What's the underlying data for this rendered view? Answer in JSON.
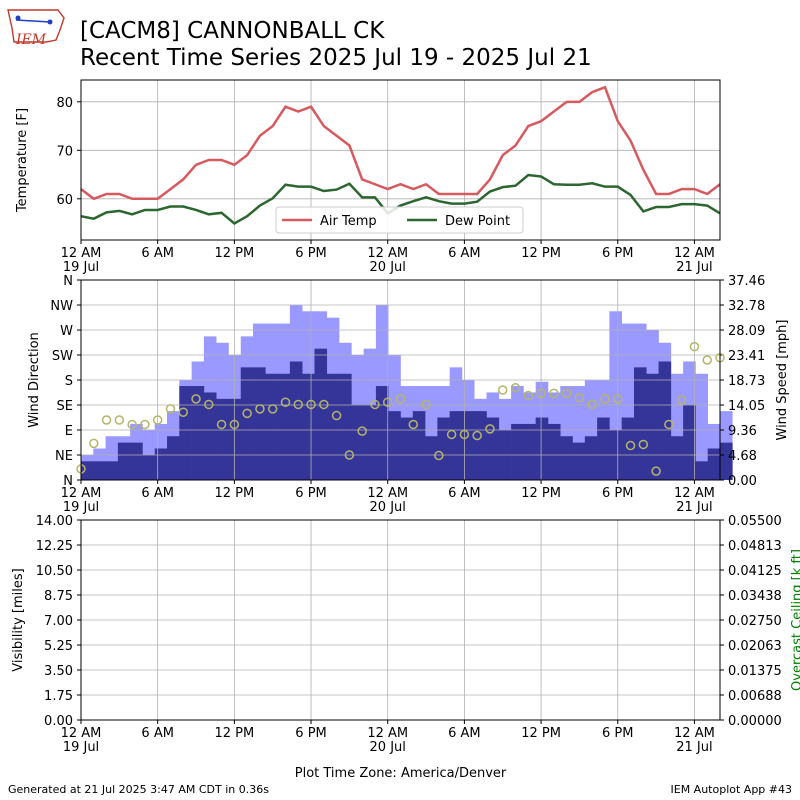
{
  "header": {
    "logo_text": "IEM",
    "title_line1": "[CACM8] CANNONBALL CK",
    "title_line2": "Recent Time Series 2025 Jul 19 - 2025 Jul 21"
  },
  "footer": {
    "generated": "Generated at 21 Jul 2025 3:47 AM CDT in 0.36s",
    "app": "IEM Autoplot App #43"
  },
  "colors": {
    "air_temp": "#d65a5f",
    "dew_point": "#2c6630",
    "gust": "#9999ff",
    "speed": "#353599",
    "direction_marker": "#b5b56a",
    "ceiling_axis": "#008000"
  },
  "chart_data": [
    {
      "type": "line",
      "x_tick_labels": [
        "12 AM\n19 Jul",
        "6 AM",
        "12 PM",
        "6 PM",
        "12 AM\n20 Jul",
        "6 AM",
        "12 PM",
        "6 PM",
        "12 AM\n21 Jul"
      ],
      "x_hours": [
        0,
        1,
        2,
        3,
        4,
        5,
        6,
        7,
        8,
        9,
        10,
        11,
        12,
        13,
        14,
        15,
        16,
        17,
        18,
        19,
        20,
        21,
        22,
        23,
        24,
        25,
        26,
        27,
        28,
        29,
        30,
        31,
        32,
        33,
        34,
        35,
        36,
        37,
        38,
        39,
        40,
        41,
        42,
        43,
        44,
        45,
        46,
        47,
        48,
        49,
        50
      ],
      "ylabel": "Temperature [F]",
      "ylim": [
        51.5,
        84.5
      ],
      "y_ticks": [
        60,
        70,
        80
      ],
      "grid": true,
      "legend_position": "bottom-center",
      "series": [
        {
          "name": "Air Temp",
          "values": [
            62,
            60,
            61,
            61,
            60,
            60,
            60,
            62,
            64,
            67,
            68,
            68,
            67,
            69,
            73,
            75,
            79,
            78,
            79,
            75,
            73,
            71,
            64,
            63,
            62,
            63,
            62,
            63,
            61,
            61,
            61,
            61,
            64,
            69,
            71,
            75,
            76,
            78,
            80,
            80,
            82,
            83,
            76,
            72,
            66,
            61,
            61,
            62,
            62,
            61,
            63
          ]
        },
        {
          "name": "Dew Point",
          "values": [
            56.4,
            55.9,
            57.2,
            57.5,
            56.8,
            57.7,
            57.7,
            58.4,
            58.4,
            57.7,
            56.8,
            57.1,
            54.9,
            56.4,
            58.6,
            60.1,
            62.9,
            62.5,
            62.5,
            61.6,
            61.9,
            63.1,
            60.3,
            60.3,
            57.0,
            58.6,
            59.5,
            60.3,
            59.5,
            59.0,
            59.0,
            59.4,
            61.5,
            62.4,
            62.7,
            64.9,
            64.6,
            63.0,
            62.9,
            62.9,
            63.2,
            62.5,
            62.5,
            60.8,
            57.4,
            58.3,
            58.3,
            58.9,
            58.9,
            58.6,
            57.0
          ]
        }
      ]
    },
    {
      "type": "bar",
      "x_tick_labels": [
        "12 AM\n19 Jul",
        "6 AM",
        "12 PM",
        "6 PM",
        "12 AM\n20 Jul",
        "6 AM",
        "12 PM",
        "6 PM",
        "12 AM\n21 Jul"
      ],
      "ylabel": "Wind Direction",
      "y_direction_labels": [
        "N",
        "NE",
        "E",
        "SE",
        "S",
        "SW",
        "W",
        "NW",
        "N"
      ],
      "ylabel_right": "Wind Speed [mph]",
      "y_right_ticks": [
        "0.00",
        "4.68",
        "9.36",
        "14.05",
        "18.73",
        "23.41",
        "28.09",
        "32.78",
        "37.46"
      ],
      "y_right_lim": [
        0,
        37.46
      ],
      "grid": true,
      "series": [
        {
          "name": "gust_mph",
          "values": [
            4.7,
            4.7,
            7.0,
            7.0,
            9.4,
            9.4,
            9.4,
            9.4,
            9.4,
            9.4,
            9.4,
            14.1,
            14.1,
            14.1,
            14.1,
            14.1,
            14.1,
            14.1,
            14.1,
            14.1,
            14.1,
            14.1,
            14.1,
            14.1,
            11.7,
            11.7,
            11.7,
            11.7,
            11.7,
            11.7,
            11.7,
            14.1,
            14.1,
            14.1,
            14.1,
            18.7,
            18.7,
            18.7,
            18.7,
            18.7,
            18.7,
            18.7,
            18.7,
            18.7,
            18.7,
            18.7,
            18.7,
            18.7,
            18.7,
            18.7,
            18.7
          ]
        },
        {
          "name": "gust_mph_hourly",
          "values": [
            4.7,
            5.9,
            8.2,
            8.2,
            10.5,
            9.4,
            10.5,
            12.9,
            18.7,
            22.2,
            26.9,
            25.7,
            23.4,
            26.9,
            29.3,
            29.3,
            29.3,
            32.8,
            31.6,
            31.6,
            30.4,
            25.7,
            23.4,
            24.6,
            32.8,
            23.4,
            17.6,
            17.6,
            17.6,
            17.6,
            21.1,
            18.7,
            15.2,
            16.4,
            15.2,
            17.6,
            16.4,
            18.4,
            16.4,
            17.6,
            17.6,
            18.7,
            18.7,
            31.6,
            29.3,
            29.3,
            28.1,
            25.7,
            19.9,
            22.2,
            19.9,
            10.5,
            12.9
          ]
        },
        {
          "name": "speed_mph",
          "values": [
            3.5,
            3.5,
            3.5,
            3.5,
            3.5,
            3.5,
            3.5,
            3.5,
            3.5,
            3.5,
            3.5,
            3.5,
            3.5,
            3.5,
            3.5,
            3.5,
            3.5,
            3.5,
            3.5,
            3.5,
            3.5,
            3.5,
            3.5,
            3.5,
            3.5,
            3.5,
            3.5,
            3.5,
            3.5,
            3.5,
            3.5,
            3.5,
            3.5,
            3.5,
            3.5,
            3.5,
            3.5,
            3.5,
            3.5,
            3.5,
            3.5,
            3.5,
            3.5,
            3.5,
            3.5,
            3.5,
            3.5,
            3.5,
            3.5,
            3.5,
            3.5
          ]
        },
        {
          "name": "speed_mph_hourly",
          "values": [
            3.5,
            3.5,
            3.5,
            7.0,
            7.0,
            4.7,
            5.9,
            8.2,
            17.6,
            17.6,
            16.4,
            15.2,
            15.2,
            21.1,
            21.1,
            19.9,
            19.9,
            22.2,
            19.9,
            24.6,
            19.9,
            19.9,
            14.1,
            14.1,
            17.6,
            12.9,
            11.7,
            12.9,
            8.2,
            11.7,
            12.9,
            12.9,
            12.9,
            11.7,
            9.4,
            10.5,
            10.5,
            11.7,
            10.5,
            8.2,
            7.0,
            8.2,
            11.7,
            9.4,
            11.7,
            21.1,
            19.9,
            22.2,
            8.2,
            14.1,
            3.5,
            5.9,
            7.0
          ]
        },
        {
          "name": "direction_deg",
          "x_hours": [
            0,
            1,
            2,
            3,
            4,
            5,
            6,
            7,
            8,
            9,
            10,
            11,
            12,
            13,
            14,
            15,
            16,
            17,
            18,
            19,
            20,
            21,
            22,
            23,
            24,
            25,
            26,
            27,
            28,
            29,
            30,
            31,
            32,
            33,
            34,
            35,
            36,
            37,
            38,
            39,
            40,
            41,
            42,
            43,
            44,
            45,
            46,
            47,
            48,
            49,
            50
          ],
          "values": [
            20,
            66,
            108,
            108,
            100,
            100,
            108,
            128,
            122,
            146,
            136,
            100,
            100,
            120,
            128,
            128,
            140,
            136,
            136,
            136,
            116,
            45,
            88,
            136,
            140,
            146,
            100,
            136,
            44,
            82,
            82,
            80,
            92,
            162,
            166,
            152,
            156,
            156,
            156,
            148,
            136,
            146,
            146,
            62,
            64,
            16,
            100,
            144,
            240,
            216,
            220
          ]
        }
      ]
    },
    {
      "type": "line",
      "x_tick_labels": [
        "12 AM\n19 Jul",
        "6 AM",
        "12 PM",
        "6 PM",
        "12 AM\n20 Jul",
        "6 AM",
        "12 PM",
        "6 PM",
        "12 AM\n21 Jul"
      ],
      "ylabel": "Visibility [miles]",
      "ylim": [
        0,
        14
      ],
      "y_ticks": [
        "0.00",
        "1.75",
        "3.50",
        "5.25",
        "7.00",
        "8.75",
        "10.50",
        "12.25",
        "14.00"
      ],
      "ylabel_right": "Overcast Ceiling [k ft]",
      "y_right_lim": [
        0,
        0.055
      ],
      "y_right_ticks": [
        "0.00000",
        "0.00688",
        "0.01375",
        "0.02063",
        "0.02750",
        "0.03438",
        "0.04125",
        "0.04813",
        "0.05500"
      ],
      "xlabel": "Plot Time Zone: America/Denver",
      "grid": true,
      "series": []
    }
  ]
}
